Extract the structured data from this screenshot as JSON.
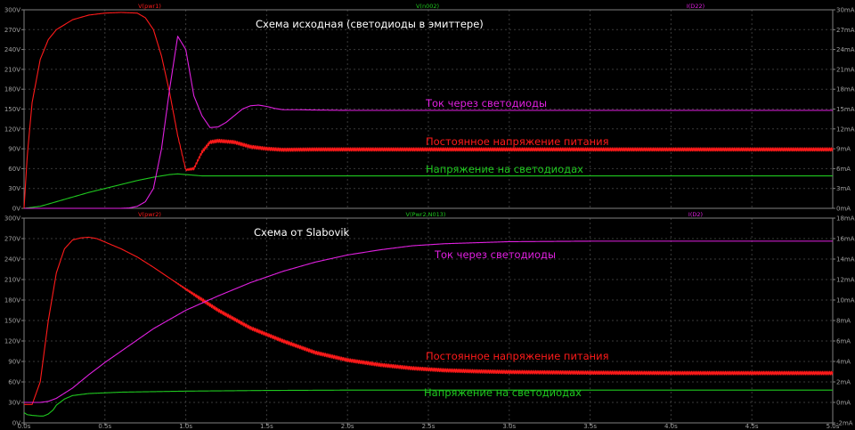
{
  "colors": {
    "background": "#000000",
    "grid": "#3a3a3a",
    "frame": "#808080",
    "tick": "#a0a0a0",
    "supply": "#ff1a1a",
    "led_voltage": "#1fc81f",
    "led_current": "#e020e0",
    "title": "#ffffff"
  },
  "chart_data": [
    {
      "type": "line",
      "title": "Схема исходная (светодиоды в эмиттере)",
      "xlim": [
        0,
        5
      ],
      "ylim_left": [
        0,
        300
      ],
      "ylim_right": [
        0,
        30
      ],
      "x_ticks": [
        "0.0s",
        "0.5s",
        "1.0s",
        "1.5s",
        "2.0s",
        "2.5s",
        "3.0s",
        "3.5s",
        "4.0s",
        "4.5s",
        "5.0s"
      ],
      "y_ticks_left": [
        "0V",
        "30V",
        "60V",
        "90V",
        "120V",
        "150V",
        "180V",
        "210V",
        "240V",
        "270V",
        "300V"
      ],
      "y_ticks_right": [
        "0mA",
        "3mA",
        "6mA",
        "9mA",
        "12mA",
        "15mA",
        "18mA",
        "21mA",
        "24mA",
        "27mA",
        "30mA"
      ],
      "grid": true,
      "series": [
        {
          "name": "V(pwr1)",
          "axis": "left",
          "annotation": "Постоянное напряжение питания",
          "ripple": 2.5,
          "x": [
            0,
            0.02,
            0.05,
            0.1,
            0.15,
            0.2,
            0.3,
            0.4,
            0.5,
            0.6,
            0.7,
            0.75,
            0.8,
            0.85,
            0.9,
            0.95,
            1.0,
            1.05,
            1.1,
            1.15,
            1.2,
            1.3,
            1.4,
            1.5,
            1.6,
            1.8,
            2.0,
            3.0,
            4.0,
            5.0
          ],
          "values": [
            0,
            80,
            160,
            225,
            255,
            270,
            285,
            292,
            295,
            296,
            295,
            288,
            270,
            230,
            175,
            110,
            58,
            60,
            85,
            100,
            102,
            100,
            93,
            90,
            88.5,
            89,
            89,
            89,
            89,
            89
          ]
        },
        {
          "name": "V(n002)",
          "axis": "left",
          "annotation": "Напряжение на светодиодах",
          "ripple": 0,
          "x": [
            0,
            0.1,
            0.2,
            0.3,
            0.4,
            0.5,
            0.6,
            0.7,
            0.8,
            0.9,
            0.95,
            1.0,
            1.1,
            1.3,
            2.0,
            3.0,
            4.0,
            5.0
          ],
          "values": [
            0,
            3,
            10,
            17,
            24,
            30,
            36,
            42,
            47,
            51,
            52,
            51,
            49,
            49,
            49,
            49,
            49,
            49
          ]
        },
        {
          "name": "I(D22)",
          "axis": "right",
          "annotation": "Ток через светодиоды",
          "ripple": 0,
          "x": [
            0,
            0.6,
            0.65,
            0.7,
            0.75,
            0.8,
            0.85,
            0.9,
            0.95,
            1.0,
            1.05,
            1.1,
            1.15,
            1.2,
            1.25,
            1.3,
            1.35,
            1.4,
            1.45,
            1.5,
            1.55,
            1.6,
            1.7,
            1.8,
            2.0,
            3.0,
            4.0,
            5.0
          ],
          "values": [
            0,
            0,
            0.05,
            0.3,
            1,
            3,
            9,
            18,
            26,
            24,
            17,
            14,
            12.2,
            12.3,
            13,
            14,
            15,
            15.5,
            15.6,
            15.4,
            15.1,
            14.9,
            14.9,
            14.85,
            14.8,
            14.8,
            14.8,
            14.8
          ]
        }
      ]
    },
    {
      "type": "line",
      "title": "Схема от Slabovik",
      "xlim": [
        0,
        5
      ],
      "ylim_left": [
        0,
        300
      ],
      "ylim_right": [
        -2,
        18
      ],
      "x_ticks": [
        "0.0s",
        "0.5s",
        "1.0s",
        "1.5s",
        "2.0s",
        "2.5s",
        "3.0s",
        "3.5s",
        "4.0s",
        "4.5s",
        "5.0s"
      ],
      "y_ticks_left": [
        "0V",
        "30V",
        "60V",
        "90V",
        "120V",
        "150V",
        "180V",
        "210V",
        "240V",
        "270V",
        "300V"
      ],
      "y_ticks_right": [
        "-2mA",
        "0mA",
        "2mA",
        "4mA",
        "6mA",
        "8mA",
        "10mA",
        "12mA",
        "14mA",
        "16mA",
        "18mA"
      ],
      "grid": true,
      "series": [
        {
          "name": "V(pwr2)",
          "axis": "left",
          "annotation": "Постоянное напряжение питания",
          "ripple": 2.5,
          "x": [
            0,
            0.05,
            0.1,
            0.15,
            0.2,
            0.25,
            0.3,
            0.35,
            0.4,
            0.45,
            0.5,
            0.6,
            0.7,
            0.8,
            0.9,
            1.0,
            1.2,
            1.4,
            1.6,
            1.8,
            2.0,
            2.2,
            2.4,
            2.6,
            2.8,
            3.0,
            3.5,
            4.0,
            5.0
          ],
          "values": [
            27,
            27,
            60,
            150,
            220,
            255,
            268,
            271,
            272,
            270,
            265,
            255,
            243,
            228,
            212,
            196,
            165,
            139,
            120,
            103,
            92,
            85,
            80,
            77,
            75.5,
            74.5,
            73.5,
            73,
            73
          ]
        },
        {
          "name": "V(Pwr2,N013)",
          "axis": "left",
          "annotation": "Напряжение на светодиодах",
          "ripple": 0,
          "x": [
            0,
            0.02,
            0.05,
            0.1,
            0.12,
            0.15,
            0.18,
            0.2,
            0.25,
            0.3,
            0.4,
            0.6,
            1.0,
            1.5,
            2.0,
            3.0,
            4.0,
            5.0
          ],
          "values": [
            15,
            12,
            11,
            10,
            10,
            13,
            19,
            26,
            35,
            40,
            43,
            45,
            46.5,
            47.5,
            48,
            48,
            48,
            48
          ]
        },
        {
          "name": "I(D2)",
          "axis": "right",
          "annotation": "Ток через светодиоды",
          "ripple": 0,
          "x": [
            0,
            0.1,
            0.15,
            0.2,
            0.3,
            0.4,
            0.5,
            0.6,
            0.8,
            1.0,
            1.2,
            1.4,
            1.6,
            1.8,
            2.0,
            2.2,
            2.4,
            2.6,
            2.8,
            3.0,
            3.5,
            4.0,
            4.5,
            5.0
          ],
          "values": [
            0,
            0,
            0.1,
            0.4,
            1.4,
            2.7,
            3.9,
            5.0,
            7.2,
            9.0,
            10.4,
            11.7,
            12.8,
            13.7,
            14.4,
            14.9,
            15.3,
            15.5,
            15.6,
            15.7,
            15.75,
            15.75,
            15.75,
            15.75
          ]
        }
      ]
    }
  ]
}
